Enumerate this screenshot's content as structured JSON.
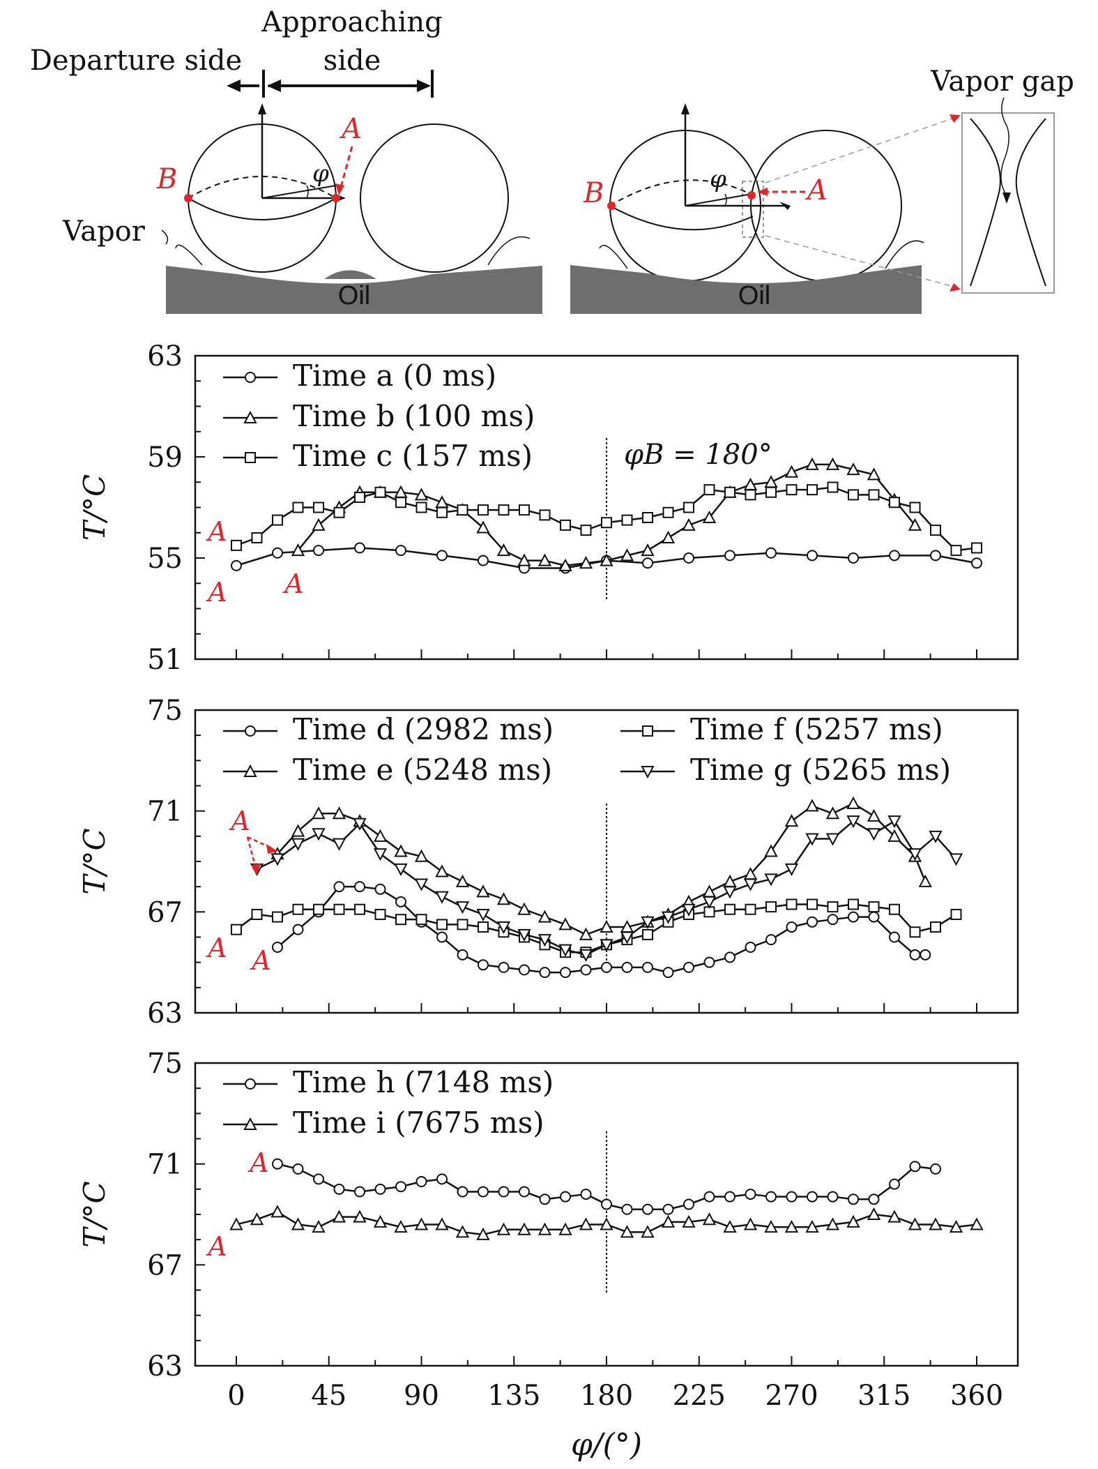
{
  "schematic": {
    "approaching_label_line1": "Approaching",
    "approaching_label_line2": "side",
    "departure_label": "Departure side",
    "vapor_label": "Vapor",
    "vapor_gap_label": "Vapor gap",
    "oil_label": "Oil",
    "point_a": "A",
    "point_b": "B",
    "angle_symbol": "φ"
  },
  "colors": {
    "marker_red": "#e0262b",
    "oil_gray": "#6e6e6e",
    "ink": "#111111"
  },
  "chart_data": [
    {
      "type": "line",
      "xlabel": "",
      "ylabel": "T/°C",
      "ylim": [
        51,
        63
      ],
      "yticks": [
        "51",
        "55",
        "59",
        "63"
      ],
      "xlim": [
        -20,
        380
      ],
      "xticks": [
        0,
        45,
        90,
        135,
        180,
        225,
        270,
        315,
        360
      ],
      "legend_position": "top-left",
      "annotation": "φB = 180°",
      "point_labels": [
        "A",
        "A",
        "A"
      ],
      "series": [
        {
          "name": "Time a (0 ms)",
          "marker": "circle",
          "x": [
            0,
            20,
            40,
            60,
            80,
            100,
            120,
            140,
            160,
            180,
            200,
            220,
            240,
            260,
            280,
            300,
            320,
            340,
            360
          ],
          "y": [
            54.7,
            55.2,
            55.3,
            55.4,
            55.3,
            55.1,
            54.9,
            54.6,
            54.6,
            54.9,
            54.8,
            55.0,
            55.1,
            55.2,
            55.1,
            55.0,
            55.1,
            55.1,
            54.8
          ]
        },
        {
          "name": "Time b (100 ms)",
          "marker": "triangle-up",
          "x": [
            30,
            40,
            50,
            60,
            70,
            80,
            90,
            100,
            110,
            120,
            130,
            140,
            150,
            160,
            170,
            180,
            190,
            200,
            210,
            220,
            230,
            240,
            250,
            260,
            270,
            280,
            290,
            300,
            310,
            320,
            330
          ],
          "y": [
            55.3,
            56.3,
            57.0,
            57.6,
            57.6,
            57.6,
            57.5,
            57.2,
            56.9,
            56.2,
            55.3,
            54.9,
            54.9,
            54.7,
            54.8,
            54.9,
            55.1,
            55.3,
            55.8,
            56.3,
            56.6,
            57.6,
            57.9,
            58.0,
            58.4,
            58.7,
            58.7,
            58.5,
            58.3,
            57.3,
            56.3
          ]
        },
        {
          "name": "Time c (157 ms)",
          "marker": "square",
          "x": [
            0,
            10,
            20,
            30,
            40,
            50,
            60,
            70,
            80,
            90,
            100,
            110,
            120,
            130,
            140,
            150,
            160,
            170,
            180,
            190,
            200,
            210,
            220,
            230,
            240,
            250,
            260,
            270,
            280,
            290,
            300,
            310,
            320,
            330,
            340,
            350,
            360
          ],
          "y": [
            55.5,
            55.8,
            56.5,
            57.0,
            57.0,
            56.8,
            57.4,
            57.6,
            57.2,
            57.0,
            56.8,
            56.9,
            56.9,
            56.9,
            56.9,
            56.7,
            56.3,
            56.1,
            56.4,
            56.5,
            56.6,
            56.8,
            57.0,
            57.7,
            57.6,
            57.5,
            57.6,
            57.7,
            57.7,
            57.8,
            57.5,
            57.5,
            57.2,
            57.0,
            56.1,
            55.3,
            55.4
          ]
        }
      ]
    },
    {
      "type": "line",
      "xlabel": "",
      "ylabel": "T/°C",
      "ylim": [
        63,
        75
      ],
      "yticks": [
        "63",
        "67",
        "71",
        "75"
      ],
      "xlim": [
        -20,
        380
      ],
      "xticks": [
        0,
        45,
        90,
        135,
        180,
        225,
        270,
        315,
        360
      ],
      "legend_position": "top",
      "point_labels": [
        "A",
        "A",
        "A"
      ],
      "series": [
        {
          "name": "Time d (2982 ms)",
          "marker": "circle",
          "x": [
            20,
            30,
            40,
            50,
            60,
            70,
            80,
            90,
            100,
            110,
            120,
            130,
            140,
            150,
            160,
            170,
            180,
            190,
            200,
            210,
            220,
            230,
            240,
            250,
            260,
            270,
            280,
            290,
            300,
            310,
            320,
            330,
            335
          ],
          "y": [
            65.6,
            66.3,
            67.0,
            68.0,
            68.0,
            67.9,
            67.4,
            66.6,
            66.0,
            65.3,
            64.9,
            64.8,
            64.7,
            64.6,
            64.6,
            64.7,
            64.8,
            64.8,
            64.8,
            64.6,
            64.8,
            65.0,
            65.2,
            65.6,
            65.9,
            66.4,
            66.6,
            66.7,
            66.8,
            66.8,
            66.0,
            65.3,
            65.3
          ]
        },
        {
          "name": "Time e (5248 ms)",
          "marker": "triangle-up",
          "x": [
            20,
            30,
            40,
            50,
            60,
            70,
            80,
            90,
            100,
            110,
            120,
            130,
            140,
            150,
            160,
            170,
            180,
            190,
            200,
            210,
            220,
            230,
            240,
            250,
            260,
            270,
            280,
            290,
            300,
            310,
            320,
            330,
            335
          ],
          "y": [
            69.3,
            70.2,
            70.9,
            70.9,
            70.6,
            70.0,
            69.4,
            69.2,
            68.6,
            68.2,
            67.8,
            67.5,
            67.1,
            66.8,
            66.5,
            66.1,
            66.4,
            66.4,
            66.6,
            66.9,
            67.4,
            67.8,
            68.2,
            68.5,
            69.4,
            70.6,
            71.2,
            70.9,
            71.3,
            70.8,
            70.0,
            69.2,
            68.2
          ]
        },
        {
          "name": "Time f (5257 ms)",
          "marker": "square",
          "x": [
            0,
            10,
            20,
            30,
            40,
            50,
            60,
            70,
            80,
            90,
            100,
            110,
            120,
            130,
            140,
            150,
            160,
            170,
            180,
            190,
            200,
            210,
            220,
            230,
            240,
            250,
            260,
            270,
            280,
            290,
            300,
            310,
            320,
            330,
            340,
            350
          ],
          "y": [
            66.3,
            66.9,
            66.8,
            67.1,
            67.1,
            67.1,
            67.1,
            66.9,
            66.7,
            66.7,
            66.5,
            66.5,
            66.4,
            66.2,
            66.0,
            65.7,
            65.4,
            65.4,
            65.7,
            65.9,
            66.1,
            66.6,
            66.9,
            67.0,
            67.1,
            67.1,
            67.2,
            67.3,
            67.3,
            67.2,
            67.3,
            67.2,
            67.1,
            66.2,
            66.4,
            66.9
          ]
        },
        {
          "name": "Time g (5265 ms)",
          "marker": "triangle-down",
          "x": [
            10,
            20,
            30,
            40,
            50,
            60,
            70,
            80,
            90,
            100,
            110,
            120,
            130,
            140,
            150,
            160,
            170,
            180,
            190,
            200,
            210,
            220,
            230,
            240,
            250,
            260,
            270,
            280,
            290,
            300,
            310,
            320,
            330,
            340,
            350
          ],
          "y": [
            68.7,
            69.1,
            69.7,
            70.1,
            69.7,
            70.5,
            69.3,
            68.7,
            68.1,
            67.6,
            67.2,
            66.9,
            66.4,
            66.1,
            65.9,
            65.5,
            65.3,
            65.7,
            66.0,
            66.6,
            66.8,
            67.1,
            67.4,
            67.8,
            68.1,
            68.3,
            68.7,
            69.9,
            69.9,
            70.6,
            70.1,
            70.6,
            69.3,
            70.0,
            69.1
          ]
        }
      ]
    },
    {
      "type": "line",
      "xlabel": "φ/(°)",
      "ylabel": "T/°C",
      "ylim": [
        63,
        75
      ],
      "yticks": [
        "63",
        "67",
        "71",
        "75"
      ],
      "xlim": [
        -20,
        380
      ],
      "xticks": [
        0,
        45,
        90,
        135,
        180,
        225,
        270,
        315,
        360
      ],
      "xtick_labels": [
        "0",
        "45",
        "90",
        "135",
        "180",
        "225",
        "270",
        "315",
        "360"
      ],
      "legend_position": "top-left",
      "point_labels": [
        "A",
        "A"
      ],
      "series": [
        {
          "name": "Time h (7148 ms)",
          "marker": "circle",
          "x": [
            20,
            30,
            40,
            50,
            60,
            70,
            80,
            90,
            100,
            110,
            120,
            130,
            140,
            150,
            160,
            170,
            180,
            190,
            200,
            210,
            220,
            230,
            240,
            250,
            260,
            270,
            280,
            290,
            300,
            310,
            320,
            330,
            340
          ],
          "y": [
            71.0,
            70.8,
            70.4,
            70.0,
            69.9,
            70.0,
            70.1,
            70.3,
            70.4,
            69.9,
            69.9,
            69.9,
            69.9,
            69.6,
            69.7,
            69.8,
            69.4,
            69.2,
            69.2,
            69.2,
            69.4,
            69.7,
            69.7,
            69.8,
            69.7,
            69.7,
            69.7,
            69.7,
            69.6,
            69.6,
            70.2,
            70.9,
            70.8
          ]
        },
        {
          "name": "Time i (7675 ms)",
          "marker": "triangle-up",
          "x": [
            0,
            10,
            20,
            30,
            40,
            50,
            60,
            70,
            80,
            90,
            100,
            110,
            120,
            130,
            140,
            150,
            160,
            170,
            180,
            190,
            200,
            210,
            220,
            230,
            240,
            250,
            260,
            270,
            280,
            290,
            300,
            310,
            320,
            330,
            340,
            350,
            360
          ],
          "y": [
            68.6,
            68.8,
            69.1,
            68.6,
            68.5,
            68.9,
            68.9,
            68.7,
            68.5,
            68.6,
            68.6,
            68.3,
            68.2,
            68.4,
            68.4,
            68.4,
            68.4,
            68.6,
            68.6,
            68.3,
            68.3,
            68.7,
            68.7,
            68.8,
            68.5,
            68.6,
            68.5,
            68.5,
            68.5,
            68.6,
            68.7,
            69.0,
            68.9,
            68.6,
            68.6,
            68.5,
            68.6
          ]
        }
      ]
    }
  ]
}
